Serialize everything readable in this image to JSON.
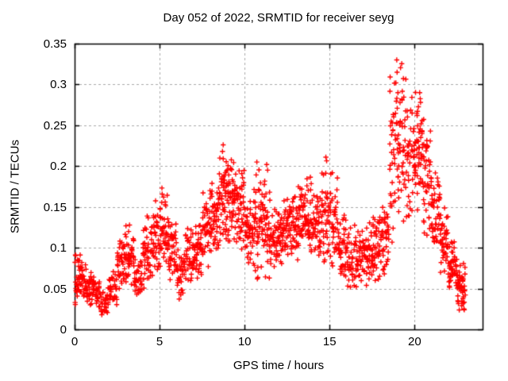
{
  "chart_data": {
    "type": "scatter",
    "title": "Day 052 of 2022, SRMTID for receiver seyg",
    "xlabel": "GPS time / hours",
    "ylabel": "SRMTID / TECUs",
    "xlim": [
      0,
      24
    ],
    "ylim": [
      0,
      0.35
    ],
    "xticks": [
      0,
      5,
      10,
      15,
      20
    ],
    "xtick_labels": [
      "0",
      "5",
      "10",
      "15",
      "20"
    ],
    "yticks": [
      0,
      0.05,
      0.1,
      0.15,
      0.2,
      0.25,
      0.3,
      0.35
    ],
    "ytick_labels": [
      "0",
      "0.05",
      "0.1",
      "0.15",
      "0.2",
      "0.25",
      "0.3",
      "0.35"
    ],
    "grid": {
      "visible": true,
      "style": "dashed",
      "color": "#a8a8a8"
    },
    "axis_color": "#000000",
    "background": "#ffffff",
    "legend": null,
    "marker": {
      "shape": "plus",
      "color": "#ff0000",
      "size": 7
    },
    "series": [
      {
        "name": "SRMTID",
        "bin_width_hours": 0.5,
        "seed": 20220252,
        "envelope_bins": [
          [
            0.0,
            0.03,
            0.095,
            45
          ],
          [
            0.5,
            0.028,
            0.08,
            40
          ],
          [
            1.0,
            0.025,
            0.07,
            36
          ],
          [
            1.5,
            0.018,
            0.052,
            30
          ],
          [
            2.0,
            0.03,
            0.072,
            36
          ],
          [
            2.5,
            0.045,
            0.12,
            40
          ],
          [
            3.0,
            0.048,
            0.13,
            42
          ],
          [
            3.5,
            0.035,
            0.088,
            36
          ],
          [
            4.0,
            0.05,
            0.14,
            42
          ],
          [
            4.5,
            0.065,
            0.16,
            44
          ],
          [
            5.0,
            0.075,
            0.175,
            46
          ],
          [
            5.5,
            0.06,
            0.14,
            42
          ],
          [
            6.0,
            0.035,
            0.1,
            36
          ],
          [
            6.5,
            0.055,
            0.13,
            40
          ],
          [
            7.0,
            0.06,
            0.128,
            42
          ],
          [
            7.5,
            0.075,
            0.17,
            44
          ],
          [
            8.0,
            0.085,
            0.18,
            46
          ],
          [
            8.5,
            0.1,
            0.226,
            50
          ],
          [
            9.0,
            0.105,
            0.215,
            50
          ],
          [
            9.5,
            0.095,
            0.205,
            46
          ],
          [
            10.0,
            0.075,
            0.165,
            44
          ],
          [
            10.5,
            0.05,
            0.2,
            44
          ],
          [
            11.0,
            0.06,
            0.2,
            44
          ],
          [
            11.5,
            0.075,
            0.15,
            42
          ],
          [
            12.0,
            0.08,
            0.158,
            44
          ],
          [
            12.5,
            0.088,
            0.175,
            44
          ],
          [
            13.0,
            0.085,
            0.175,
            44
          ],
          [
            13.5,
            0.092,
            0.19,
            46
          ],
          [
            14.0,
            0.085,
            0.17,
            44
          ],
          [
            14.5,
            0.08,
            0.21,
            44
          ],
          [
            15.0,
            0.07,
            0.195,
            42
          ],
          [
            15.5,
            0.058,
            0.15,
            40
          ],
          [
            16.0,
            0.045,
            0.13,
            38
          ],
          [
            16.5,
            0.048,
            0.125,
            38
          ],
          [
            17.0,
            0.052,
            0.135,
            40
          ],
          [
            17.5,
            0.058,
            0.145,
            42
          ],
          [
            18.0,
            0.068,
            0.155,
            42
          ],
          [
            18.5,
            0.095,
            0.33,
            42
          ],
          [
            19.0,
            0.12,
            0.33,
            44
          ],
          [
            19.5,
            0.13,
            0.285,
            42
          ],
          [
            20.0,
            0.145,
            0.295,
            48
          ],
          [
            20.5,
            0.105,
            0.26,
            46
          ],
          [
            21.0,
            0.085,
            0.2,
            42
          ],
          [
            21.5,
            0.065,
            0.15,
            44
          ],
          [
            22.0,
            0.045,
            0.11,
            46
          ],
          [
            22.5,
            0.022,
            0.085,
            46
          ]
        ],
        "extra_points": [
          [
            18.95,
            0.33
          ],
          [
            18.97,
            0.315
          ],
          [
            18.9,
            0.302
          ],
          [
            19.02,
            0.29
          ],
          [
            8.74,
            0.226
          ],
          [
            8.7,
            0.218
          ],
          [
            14.78,
            0.211
          ],
          [
            10.72,
            0.205
          ],
          [
            11.3,
            0.202
          ],
          [
            1.6,
            0.018
          ],
          [
            22.9,
            0.025
          ],
          [
            22.85,
            0.032
          ],
          [
            20.3,
            0.29
          ],
          [
            20.35,
            0.278
          ],
          [
            20.15,
            0.262
          ]
        ]
      }
    ]
  }
}
